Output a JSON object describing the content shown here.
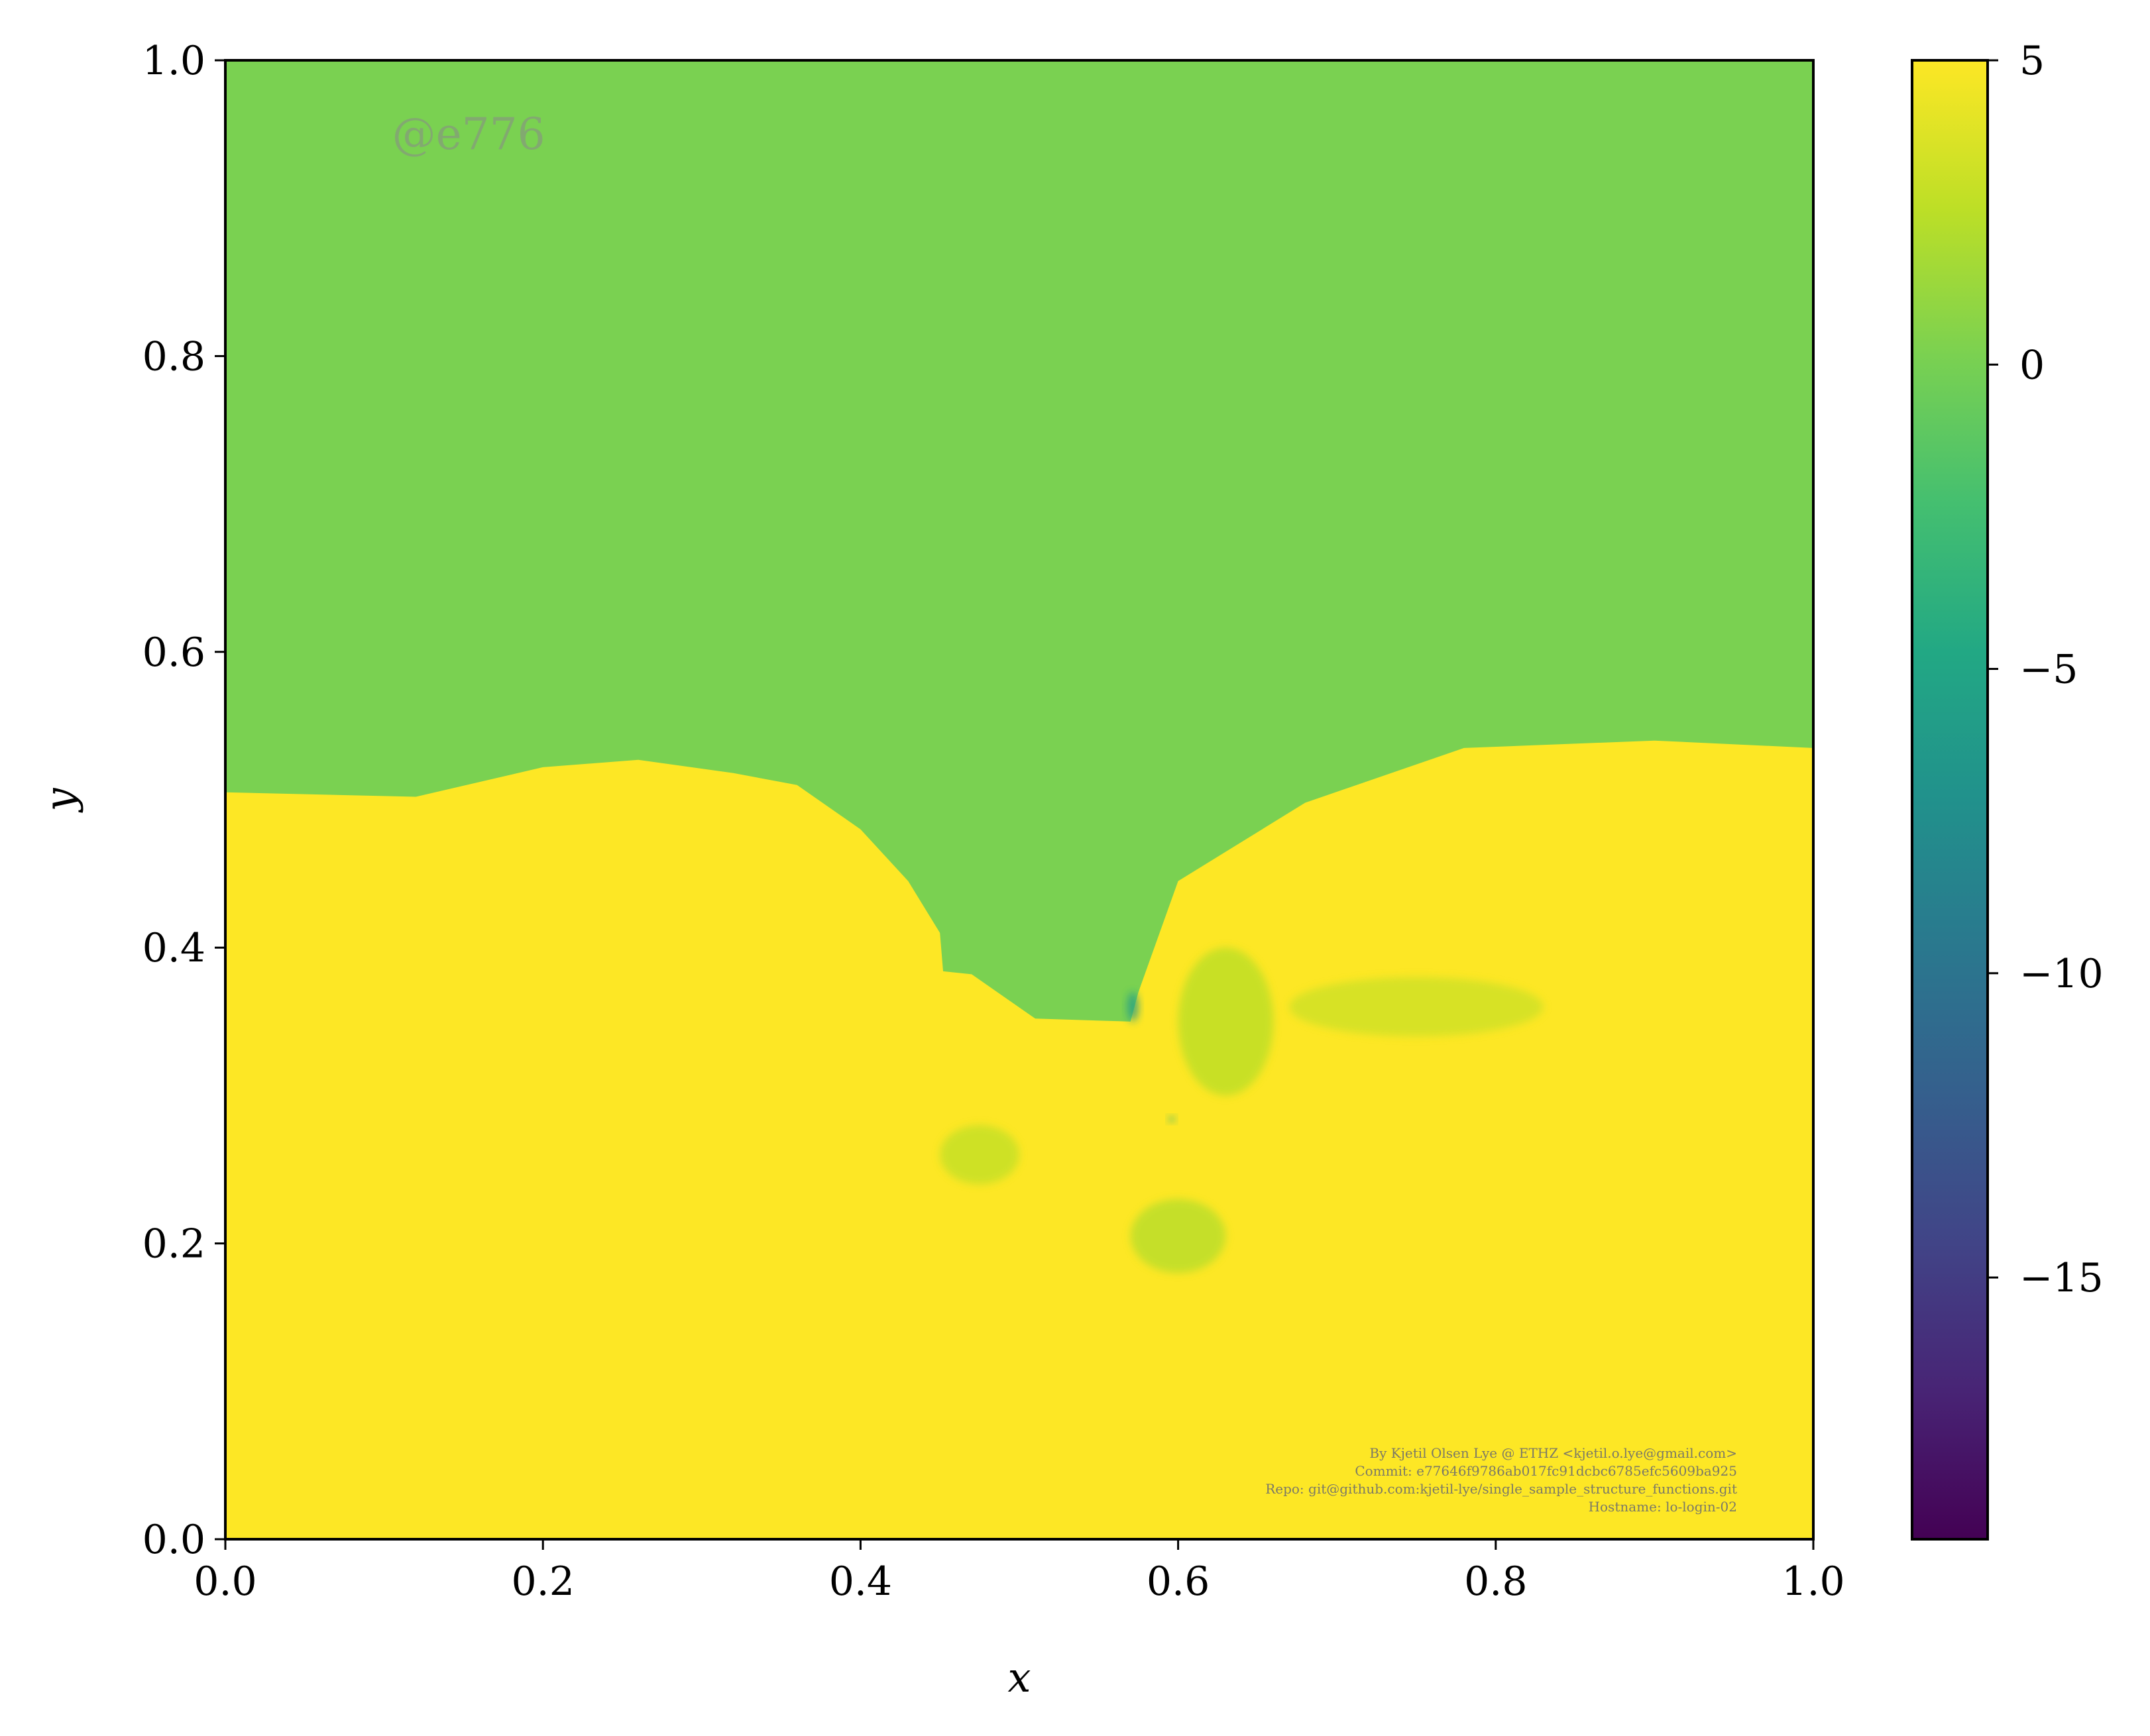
{
  "chart_data": {
    "type": "heatmap",
    "title": "",
    "xlabel": "x",
    "ylabel": "y",
    "xlim": [
      0,
      1
    ],
    "ylim": [
      0,
      1
    ],
    "x_ticks": [
      "0.0",
      "0.2",
      "0.4",
      "0.6",
      "0.8",
      "1.0"
    ],
    "y_ticks": [
      "0.0",
      "0.2",
      "0.4",
      "0.6",
      "0.8",
      "1.0"
    ],
    "x_tick_values": [
      0,
      0.2,
      0.4,
      0.6,
      0.8,
      1.0
    ],
    "y_tick_values": [
      0,
      0.2,
      0.4,
      0.6,
      0.8,
      1.0
    ],
    "grid": false,
    "colormap": "viridis",
    "colorbar": {
      "range": [
        -19.3,
        5
      ],
      "tick_values": [
        5,
        0,
        -5,
        -10,
        -15
      ],
      "tick_labels": [
        "5",
        "0",
        "−5",
        "−10",
        "−15"
      ]
    },
    "regions": [
      {
        "name": "upper",
        "value": 1.2,
        "color": "#7ad151",
        "boundary_y_by_x": [
          [
            0,
            0.505
          ],
          [
            0.12,
            0.502
          ],
          [
            0.2,
            0.522
          ],
          [
            0.26,
            0.527
          ],
          [
            0.32,
            0.518
          ],
          [
            0.36,
            0.51
          ],
          [
            0.4,
            0.48
          ],
          [
            0.43,
            0.445
          ],
          [
            0.45,
            0.41
          ],
          [
            0.452,
            0.384
          ],
          [
            0.47,
            0.382
          ],
          [
            0.51,
            0.352
          ],
          [
            0.57,
            0.35
          ],
          [
            0.575,
            0.37
          ],
          [
            0.6,
            0.445
          ],
          [
            0.68,
            0.498
          ],
          [
            0.78,
            0.535
          ],
          [
            0.9,
            0.54
          ],
          [
            1.0,
            0.535
          ]
        ]
      },
      {
        "name": "lower",
        "value": 5,
        "color": "#fde725"
      }
    ],
    "features": [
      {
        "x": [
          0.6,
          0.66
        ],
        "y": [
          0.3,
          0.4
        ],
        "value": 2.5
      },
      {
        "x": [
          0.67,
          0.83
        ],
        "y": [
          0.34,
          0.38
        ],
        "value": 3.2
      },
      {
        "x": [
          0.45,
          0.5
        ],
        "y": [
          0.24,
          0.28
        ],
        "value": 2.8
      },
      {
        "x": [
          0.57,
          0.63
        ],
        "y": [
          0.18,
          0.23
        ],
        "value": 2.4
      },
      {
        "x": [
          0.568,
          0.575
        ],
        "y": [
          0.35,
          0.37
        ],
        "value": -6
      },
      {
        "x": [
          0.594,
          0.598
        ],
        "y": [
          0.282,
          0.286
        ],
        "value": -4
      }
    ]
  },
  "watermark": "@e776",
  "credits": [
    "By Kjetil Olsen Lye @ ETHZ <kjetil.o.lye@gmail.com>",
    "Commit: e77646f9786ab017fc91dcbc6785efc5609ba925",
    "Repo: git@github.com:kjetil-lye/single_sample_structure_functions.git",
    "Hostname: lo-login-02"
  ]
}
